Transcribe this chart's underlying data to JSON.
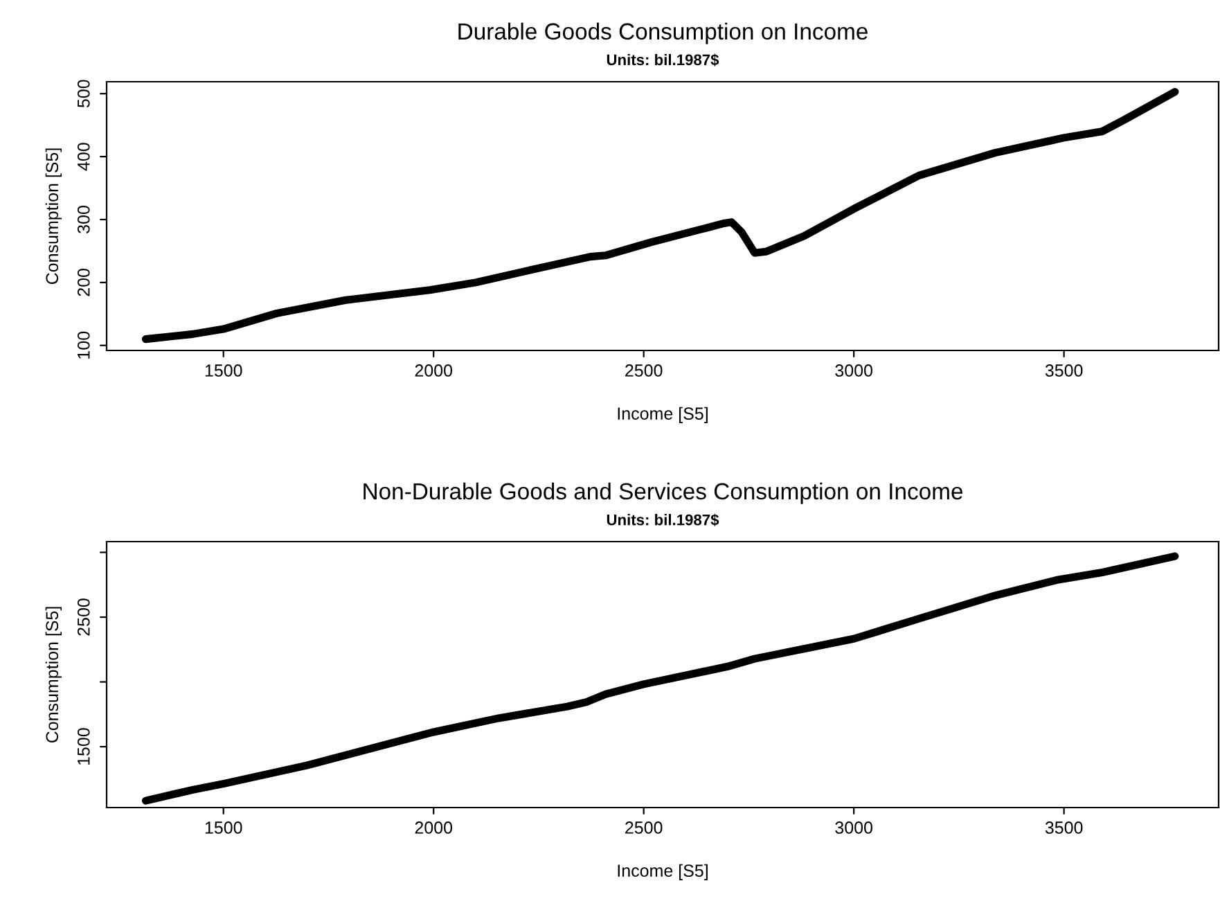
{
  "chart_data": [
    {
      "type": "line",
      "title": "Durable Goods Consumption on Income",
      "subtitle": "Units: bil.1987$",
      "xlabel": "Income [S5]",
      "ylabel": "Consumption [S5]",
      "x": [
        1315,
        1427,
        1500,
        1627,
        1791,
        1991,
        2100,
        2245,
        2373,
        2409,
        2518,
        2691,
        2709,
        2733,
        2764,
        2791,
        2882,
        3000,
        3155,
        3336,
        3500,
        3591,
        3645,
        3764
      ],
      "series": [
        {
          "color": "#000000",
          "values": [
            110,
            118,
            126,
            151,
            172,
            188,
            200,
            222,
            241,
            243,
            264,
            294,
            296,
            280,
            247,
            249,
            274,
            317,
            370,
            406,
            430,
            440,
            459,
            503
          ]
        }
      ],
      "xlim": [
        1222,
        3868
      ],
      "ylim": [
        92,
        519
      ],
      "xticks": [
        1500,
        2000,
        2500,
        3000,
        3500
      ],
      "yticks": [
        100,
        200,
        300,
        400,
        500
      ],
      "grid": false,
      "legend": false,
      "marker": "none",
      "line_style": "solid"
    },
    {
      "type": "line",
      "title": "Non-Durable Goods and Services Consumption on Income",
      "subtitle": "Units: bil.1987$",
      "xlabel": "Income [S5]",
      "ylabel": "Consumption [S5]",
      "x": [
        1315,
        1427,
        1500,
        1700,
        2000,
        2155,
        2318,
        2364,
        2409,
        2500,
        2700,
        2764,
        3000,
        3155,
        3336,
        3482,
        3591,
        3764
      ],
      "series": [
        {
          "color": "#000000",
          "values": [
            1083,
            1167,
            1214,
            1357,
            1613,
            1720,
            1810,
            1845,
            1905,
            1982,
            2119,
            2179,
            2333,
            2488,
            2667,
            2786,
            2845,
            2970
          ]
        }
      ],
      "xlim": [
        1222,
        3868
      ],
      "ylim": [
        1030,
        3083
      ],
      "xticks": [
        1500,
        2000,
        2500,
        3000,
        3500
      ],
      "yticks": [
        1500,
        {
          "value": 2000,
          "label": null
        },
        2500,
        {
          "value": 3000,
          "label": null
        }
      ],
      "grid": false,
      "legend": false,
      "marker": "none",
      "line_style": "solid"
    }
  ]
}
